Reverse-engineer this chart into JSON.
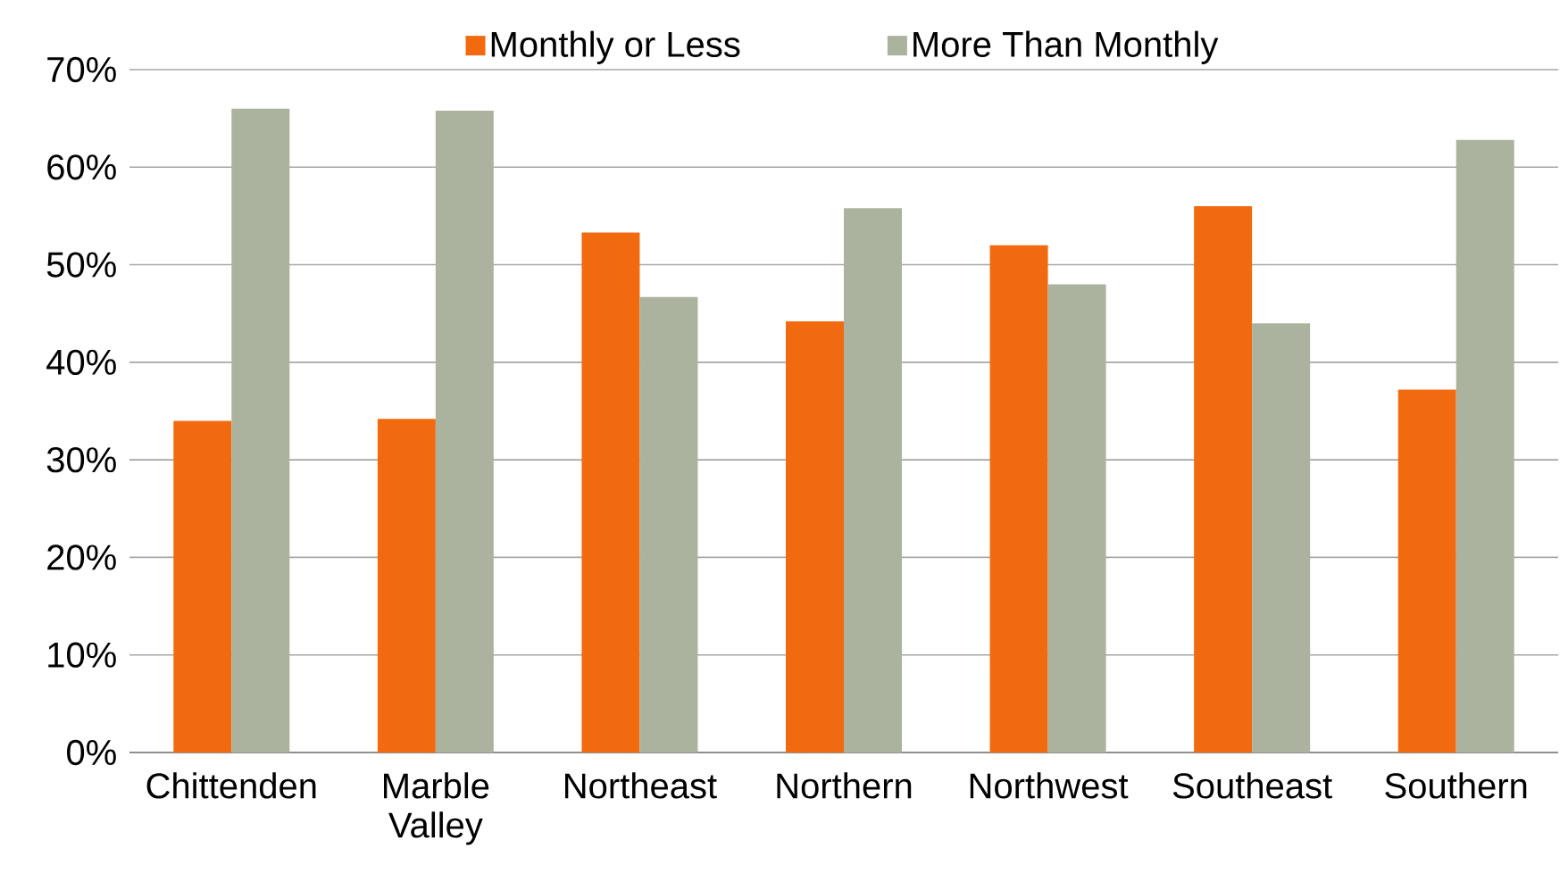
{
  "chart_data": {
    "type": "bar",
    "categories": [
      "Chittenden",
      "Marble Valley",
      "Northeast",
      "Northern",
      "Northwest",
      "Southeast",
      "Southern"
    ],
    "series": [
      {
        "name": "Monthly or Less",
        "color": "#f26a10",
        "values": [
          34.0,
          34.2,
          53.3,
          44.2,
          52.0,
          56.0,
          37.2
        ]
      },
      {
        "name": "More Than Monthly",
        "color": "#abb39f",
        "values": [
          66.0,
          65.8,
          46.7,
          55.8,
          48.0,
          44.0,
          62.8
        ]
      }
    ],
    "ylim": [
      0,
      70
    ],
    "yticks": [
      {
        "value": 0,
        "label": "0%"
      },
      {
        "value": 10,
        "label": "10%"
      },
      {
        "value": 20,
        "label": "20%"
      },
      {
        "value": 30,
        "label": "30%"
      },
      {
        "value": 40,
        "label": "40%"
      },
      {
        "value": 50,
        "label": "50%"
      },
      {
        "value": 60,
        "label": "60%"
      },
      {
        "value": 70,
        "label": "70%"
      }
    ],
    "grid": "y",
    "legend": "top"
  }
}
